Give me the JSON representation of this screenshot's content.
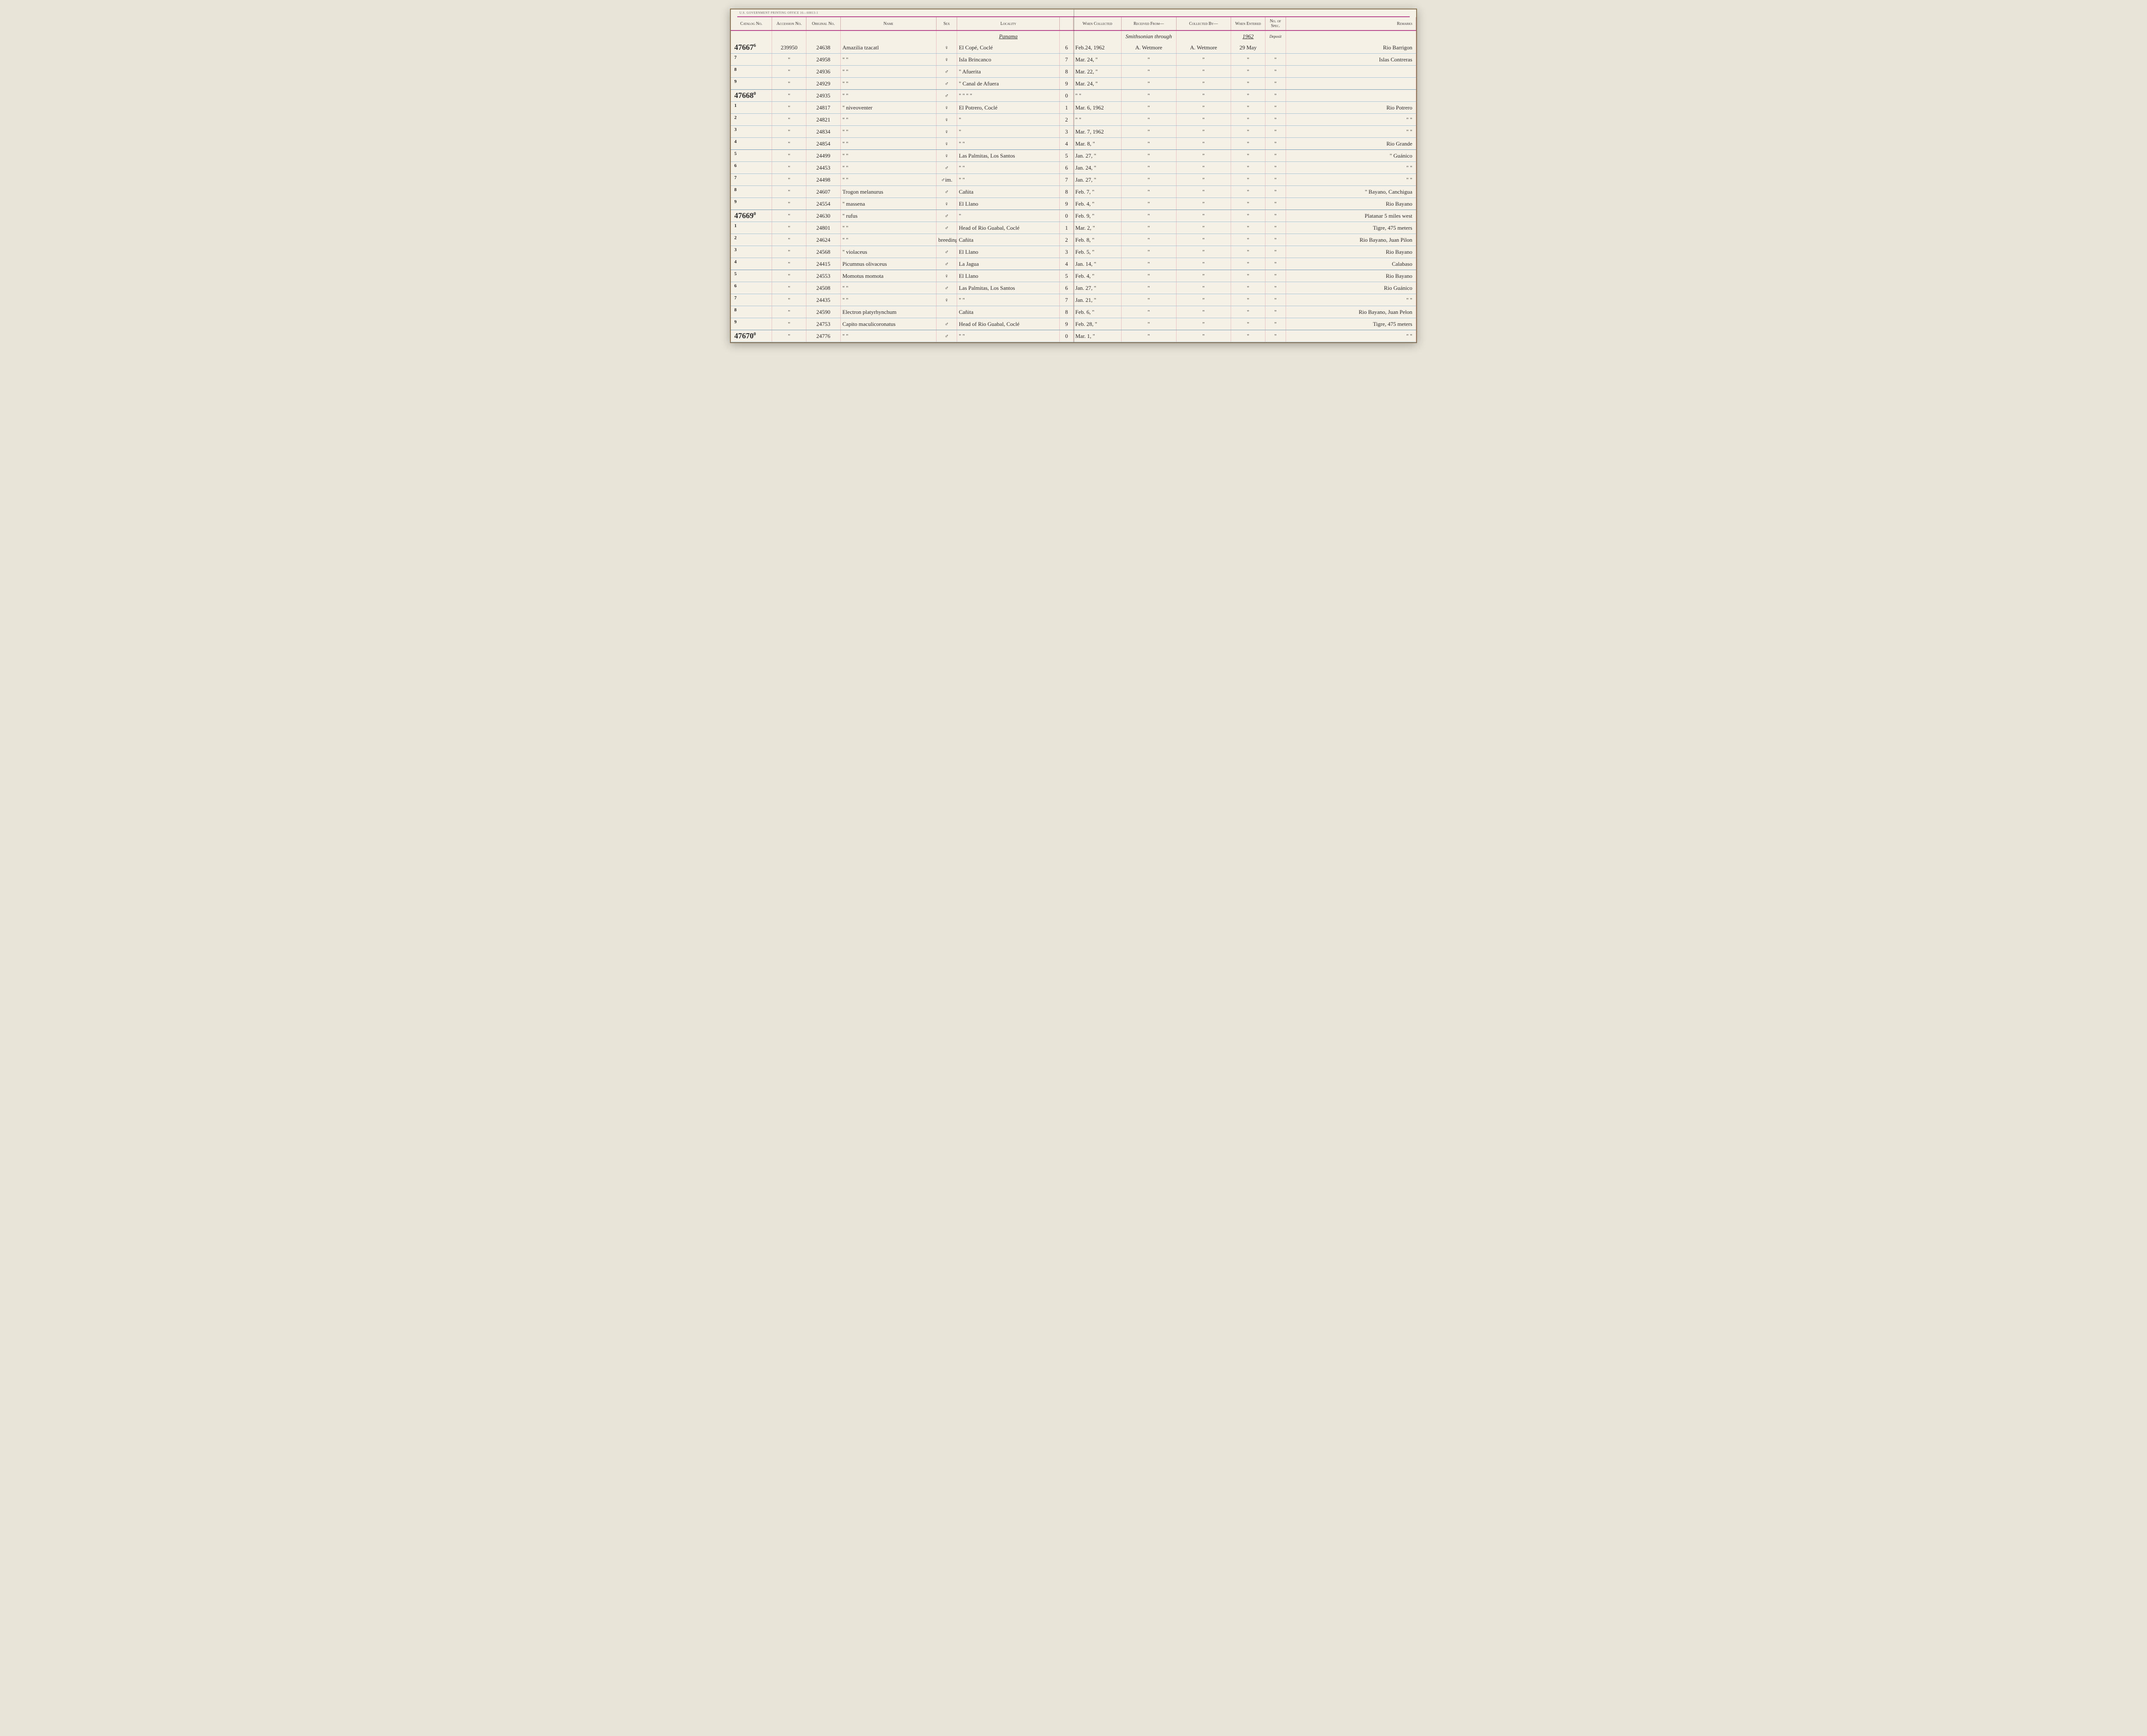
{
  "print_notice": "U.S. Government Printing Office   16—60813-1",
  "headers": {
    "catalog": "Catalog No.",
    "accession": "Accession No.",
    "original": "Original No.",
    "name": "Name",
    "sex": "Sex",
    "locality": "Locality",
    "when": "When Collected",
    "received": "Received From—",
    "collected": "Collected By—",
    "entered": "When Entered",
    "spec": "No. of Spec.",
    "remarks": "Remarks"
  },
  "page_header": {
    "locality": "Panama",
    "received": "Smithsonian through",
    "entered_year": "1962",
    "spec": "Deposit"
  },
  "rows": [
    {
      "catalog": "47667",
      "suffix": "6",
      "accession": "239950",
      "original": "24638",
      "name": "Amazilia tzacatl",
      "sex": "♀",
      "locality": "El Copé, Coclé",
      "ridx": "6",
      "when": "Feb.24, 1962",
      "received": "A. Wetmore",
      "collected": "A. Wetmore",
      "entered": "29 May",
      "spec": "",
      "remarks": "Rio Barrigon"
    },
    {
      "catalog": "",
      "suffix": "7",
      "accession": "\"",
      "original": "24958",
      "name": "\"        \"",
      "sex": "♀",
      "locality": "Isla Brincanco",
      "ridx": "7",
      "when": "Mar. 24, \"",
      "received": "\"",
      "collected": "\"",
      "entered": "\"",
      "spec": "\"",
      "remarks": "Islas Contreras"
    },
    {
      "catalog": "",
      "suffix": "8",
      "accession": "\"",
      "original": "24936",
      "name": "\"        \"",
      "sex": "♂",
      "locality": "\"   Afuerita",
      "ridx": "8",
      "when": "Mar. 22, \"",
      "received": "\"",
      "collected": "\"",
      "entered": "\"",
      "spec": "\"",
      "remarks": ""
    },
    {
      "catalog": "",
      "suffix": "9",
      "accession": "\"",
      "original": "24929",
      "name": "\"        \"",
      "sex": "♂",
      "locality": "\"  Canal de Afuera",
      "ridx": "9",
      "when": "Mar. 24, \"",
      "received": "\"",
      "collected": "\"",
      "entered": "\"",
      "spec": "\"",
      "remarks": ""
    },
    {
      "catalog": "47668",
      "suffix": "0",
      "accession": "\"",
      "original": "24935",
      "name": "\"        \"",
      "sex": "♂",
      "locality": "\"   \"   \"   \"",
      "ridx": "0",
      "when": "\"   \"",
      "received": "\"",
      "collected": "\"",
      "entered": "\"",
      "spec": "\"",
      "remarks": ""
    },
    {
      "catalog": "",
      "suffix": "1",
      "accession": "\"",
      "original": "24817",
      "name": "\"   niveoventer",
      "sex": "♀",
      "locality": "El Potrero, Coclé",
      "ridx": "1",
      "when": "Mar. 6, 1962",
      "received": "\"",
      "collected": "\"",
      "entered": "\"",
      "spec": "\"",
      "remarks": "Rio Potrero"
    },
    {
      "catalog": "",
      "suffix": "2",
      "accession": "\"",
      "original": "24821",
      "name": "\"        \"",
      "sex": "♀",
      "locality": "\"",
      "ridx": "2",
      "when": "\"   \"",
      "received": "\"",
      "collected": "\"",
      "entered": "\"",
      "spec": "\"",
      "remarks": "\"   \""
    },
    {
      "catalog": "",
      "suffix": "3",
      "accession": "\"",
      "original": "24834",
      "name": "\"        \"",
      "sex": "♀",
      "locality": "\"",
      "ridx": "3",
      "when": "Mar. 7, 1962",
      "received": "\"",
      "collected": "\"",
      "entered": "\"",
      "spec": "\"",
      "remarks": "\"   \""
    },
    {
      "catalog": "",
      "suffix": "4",
      "accession": "\"",
      "original": "24854",
      "name": "\"        \"",
      "sex": "♀",
      "locality": "\"        \"",
      "ridx": "4",
      "when": "Mar. 8, \"",
      "received": "\"",
      "collected": "\"",
      "entered": "\"",
      "spec": "\"",
      "remarks": "Rio Grande"
    },
    {
      "catalog": "",
      "suffix": "5",
      "accession": "\"",
      "original": "24499",
      "name": "\"        \"",
      "sex": "♀",
      "locality": "Las Palmitas, Los Santos",
      "ridx": "5",
      "when": "Jan. 27, \"",
      "received": "\"",
      "collected": "\"",
      "entered": "\"",
      "spec": "\"",
      "remarks": "\"  Guánico"
    },
    {
      "catalog": "",
      "suffix": "6",
      "accession": "\"",
      "original": "24453",
      "name": "\"        \"",
      "sex": "♂",
      "locality": "\"        \"",
      "ridx": "6",
      "when": "Jan. 24, \"",
      "received": "\"",
      "collected": "\"",
      "entered": "\"",
      "spec": "\"",
      "remarks": "\"   \""
    },
    {
      "catalog": "",
      "suffix": "7",
      "accession": "\"",
      "original": "24498",
      "name": "\"        \"",
      "sex": "♂im.",
      "locality": "\"        \"",
      "ridx": "7",
      "when": "Jan. 27, \"",
      "received": "\"",
      "collected": "\"",
      "entered": "\"",
      "spec": "\"",
      "remarks": "\"   \""
    },
    {
      "catalog": "",
      "suffix": "8",
      "accession": "\"",
      "original": "24607",
      "name": "Trogon melanurus",
      "sex": "♂",
      "locality": "Cañita",
      "ridx": "8",
      "when": "Feb. 7, \"",
      "received": "\"",
      "collected": "\"",
      "entered": "\"",
      "spec": "\"",
      "remarks": "\" Bayano, Canchigua"
    },
    {
      "catalog": "",
      "suffix": "9",
      "accession": "\"",
      "original": "24554",
      "name": "\"   massena",
      "sex": "♀",
      "locality": "El Llano",
      "ridx": "9",
      "when": "Feb. 4, \"",
      "received": "\"",
      "collected": "\"",
      "entered": "\"",
      "spec": "\"",
      "remarks": "Rio Bayano"
    },
    {
      "catalog": "47669",
      "suffix": "0",
      "accession": "\"",
      "original": "24630",
      "name": "\"   rufus",
      "sex": "♂",
      "locality": "\"",
      "ridx": "0",
      "when": "Feb. 9, \"",
      "received": "\"",
      "collected": "\"",
      "entered": "\"",
      "spec": "\"",
      "remarks": "Platanar 5 miles west"
    },
    {
      "catalog": "",
      "suffix": "1",
      "accession": "\"",
      "original": "24801",
      "name": "\"        \"",
      "sex": "♂",
      "locality": "Head of Rio Guabal, Coclé",
      "ridx": "1",
      "when": "Mar. 2, \"",
      "received": "\"",
      "collected": "\"",
      "entered": "\"",
      "spec": "\"",
      "remarks": "Tigre, 475 meters"
    },
    {
      "catalog": "",
      "suffix": "2",
      "accession": "\"",
      "original": "24624",
      "name": "\"        \"",
      "sex": "breeding ♀",
      "locality": "Cañita",
      "ridx": "2",
      "when": "Feb. 8, \"",
      "received": "\"",
      "collected": "\"",
      "entered": "\"",
      "spec": "\"",
      "remarks": "Rio Bayano, Juan Pilon"
    },
    {
      "catalog": "",
      "suffix": "3",
      "accession": "\"",
      "original": "24568",
      "name": "\"   violaceus",
      "sex": "♂",
      "locality": "El Llano",
      "ridx": "3",
      "when": "Feb. 5, \"",
      "received": "\"",
      "collected": "\"",
      "entered": "\"",
      "spec": "\"",
      "remarks": "Rio Bayano"
    },
    {
      "catalog": "",
      "suffix": "4",
      "accession": "\"",
      "original": "24415",
      "name": "Picumnus olivaceus",
      "sex": "♂",
      "locality": "La Jagua",
      "ridx": "4",
      "when": "Jan. 14, \"",
      "received": "\"",
      "collected": "\"",
      "entered": "\"",
      "spec": "\"",
      "remarks": "Calabaso"
    },
    {
      "catalog": "",
      "suffix": "5",
      "accession": "\"",
      "original": "24553",
      "name": "Momotus momota",
      "sex": "♀",
      "locality": "El Llano",
      "ridx": "5",
      "when": "Feb. 4, \"",
      "received": "\"",
      "collected": "\"",
      "entered": "\"",
      "spec": "\"",
      "remarks": "Rio Bayano"
    },
    {
      "catalog": "",
      "suffix": "6",
      "accession": "\"",
      "original": "24508",
      "name": "\"        \"",
      "sex": "♂",
      "locality": "Las Palmitas, Los Santos",
      "ridx": "6",
      "when": "Jan. 27, \"",
      "received": "\"",
      "collected": "\"",
      "entered": "\"",
      "spec": "\"",
      "remarks": "Rio Guánico"
    },
    {
      "catalog": "",
      "suffix": "7",
      "accession": "\"",
      "original": "24435",
      "name": "\"        \"",
      "sex": "♀",
      "locality": "\"        \"",
      "ridx": "7",
      "when": "Jan. 21, \"",
      "received": "\"",
      "collected": "\"",
      "entered": "\"",
      "spec": "\"",
      "remarks": "\"   \""
    },
    {
      "catalog": "",
      "suffix": "8",
      "accession": "\"",
      "original": "24590",
      "name": "Electron platyrhynchum",
      "sex": "",
      "locality": "Cañita",
      "ridx": "8",
      "when": "Feb. 6, \"",
      "received": "\"",
      "collected": "\"",
      "entered": "\"",
      "spec": "\"",
      "remarks": "Rio Bayano, Juan Pelon"
    },
    {
      "catalog": "",
      "suffix": "9",
      "accession": "\"",
      "original": "24753",
      "name": "Capito maculicoronatus",
      "sex": "♂",
      "locality": "Head of Rio Guabal, Coclé",
      "ridx": "9",
      "when": "Feb. 28, \"",
      "received": "\"",
      "collected": "\"",
      "entered": "\"",
      "spec": "\"",
      "remarks": "Tigre, 475 meters"
    },
    {
      "catalog": "47670",
      "suffix": "0",
      "accession": "\"",
      "original": "24776",
      "name": "\"        \"",
      "sex": "♂",
      "locality": "\"        \"",
      "ridx": "0",
      "when": "Mar. 1, \"",
      "received": "\"",
      "collected": "\"",
      "entered": "\"",
      "spec": "\"",
      "remarks": "\"   \""
    }
  ]
}
